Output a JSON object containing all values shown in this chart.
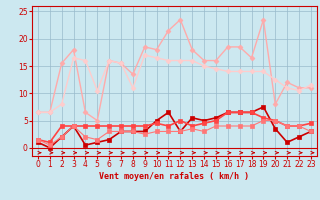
{
  "background_color": "#cce8f0",
  "grid_color": "#99bbcc",
  "xlabel": "Vent moyen/en rafales ( km/h )",
  "xlim": [
    -0.5,
    23.5
  ],
  "ylim": [
    -1.5,
    26
  ],
  "yticks": [
    0,
    5,
    10,
    15,
    20,
    25
  ],
  "xticks": [
    0,
    1,
    2,
    3,
    4,
    5,
    6,
    7,
    8,
    9,
    10,
    11,
    12,
    13,
    14,
    15,
    16,
    17,
    18,
    19,
    20,
    21,
    22,
    23
  ],
  "lines": [
    {
      "color": "#ffaaaa",
      "x": [
        0,
        1,
        2,
        3,
        4,
        5,
        6,
        7,
        8,
        9,
        10,
        11,
        12,
        13,
        14,
        15,
        16,
        17,
        18,
        19,
        20,
        21,
        22,
        23
      ],
      "y": [
        6.5,
        6.5,
        15.5,
        18,
        6.5,
        5,
        16,
        15.5,
        13.5,
        18.5,
        18,
        21.5,
        23.5,
        18,
        16,
        16,
        18.5,
        18.5,
        16.5,
        23.5,
        8,
        12,
        11,
        11
      ],
      "marker": "D",
      "markersize": 2.5,
      "linewidth": 1.0
    },
    {
      "color": "#ffcccc",
      "x": [
        0,
        1,
        2,
        3,
        4,
        5,
        6,
        7,
        8,
        9,
        10,
        11,
        12,
        13,
        14,
        15,
        16,
        17,
        18,
        19,
        20,
        21,
        22,
        23
      ],
      "y": [
        6.5,
        6.5,
        8,
        16.5,
        16,
        10.5,
        16,
        15.5,
        11,
        17,
        16.5,
        16,
        16,
        16,
        15,
        14.5,
        14,
        14,
        14,
        14,
        12.5,
        11,
        10.5,
        11.5
      ],
      "marker": "D",
      "markersize": 2.5,
      "linewidth": 1.0
    },
    {
      "color": "#cc0000",
      "x": [
        0,
        1,
        2,
        3,
        4,
        5,
        6,
        7,
        8,
        9,
        10,
        11,
        12,
        13,
        14,
        15,
        16,
        17,
        18,
        19,
        20,
        21,
        22,
        23
      ],
      "y": [
        1,
        0,
        2,
        4,
        0.5,
        1,
        1.5,
        3,
        3,
        3,
        5,
        6.5,
        3,
        5.5,
        5,
        5.5,
        6.5,
        6.5,
        6.5,
        7.5,
        3.5,
        1,
        2,
        3
      ],
      "marker": "s",
      "markersize": 2.5,
      "linewidth": 1.2
    },
    {
      "color": "#ff4444",
      "x": [
        0,
        1,
        2,
        3,
        4,
        5,
        6,
        7,
        8,
        9,
        10,
        11,
        12,
        13,
        14,
        15,
        16,
        17,
        18,
        19,
        20,
        21,
        22,
        23
      ],
      "y": [
        1.5,
        1,
        4,
        4,
        4,
        4,
        4,
        4,
        4,
        4,
        4.5,
        4,
        5,
        4,
        4.5,
        5,
        6.5,
        6.5,
        6.5,
        5.5,
        5,
        4,
        4,
        4.5
      ],
      "marker": "s",
      "markersize": 2.5,
      "linewidth": 1.2
    },
    {
      "color": "#ff7777",
      "x": [
        0,
        1,
        2,
        3,
        4,
        5,
        6,
        7,
        8,
        9,
        10,
        11,
        12,
        13,
        14,
        15,
        16,
        17,
        18,
        19,
        20,
        21,
        22,
        23
      ],
      "y": [
        1.5,
        0.5,
        2,
        4,
        2,
        1.5,
        3,
        3,
        3,
        2.5,
        3,
        3,
        3,
        3.5,
        3,
        4,
        4,
        4,
        4,
        5,
        5,
        4,
        4,
        3
      ],
      "marker": "s",
      "markersize": 2.5,
      "linewidth": 0.8
    }
  ],
  "axis_color": "#cc0000",
  "label_color": "#cc0000",
  "tick_color": "#cc0000",
  "tick_fontsize": 5.5,
  "xlabel_fontsize": 6.0
}
